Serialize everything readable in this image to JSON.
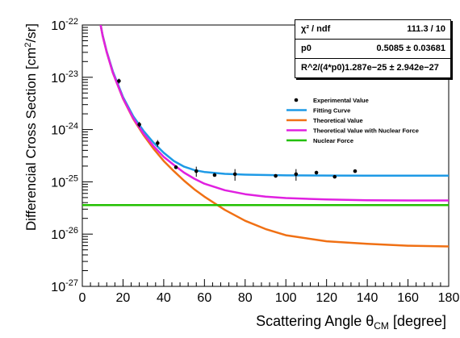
{
  "chart_data": {
    "type": "scatter",
    "xlabel": "Scattering Angle θ",
    "xlabel_sub": "CM",
    "xlabel_suffix": " [degree]",
    "ylabel": "Differencial Cross Section [cm",
    "ylabel_sup": "2",
    "ylabel_suffix": "/sr]",
    "xlim": [
      0,
      180
    ],
    "ylim": [
      1e-27,
      1e-22
    ],
    "yscale": "log",
    "x_ticks": [
      "0",
      "20",
      "40",
      "60",
      "80",
      "100",
      "120",
      "140",
      "160",
      "180"
    ],
    "y_ticks": [
      {
        "base": "10",
        "exp": "-22",
        "value": 1e-22
      },
      {
        "base": "10",
        "exp": "-23",
        "value": 1e-23
      },
      {
        "base": "10",
        "exp": "-24",
        "value": 1e-24
      },
      {
        "base": "10",
        "exp": "-25",
        "value": 1e-25
      },
      {
        "base": "10",
        "exp": "-26",
        "value": 1e-26
      },
      {
        "base": "10",
        "exp": "-27",
        "value": 1e-27
      }
    ],
    "grid": false,
    "legend_position": "center-right",
    "series": [
      {
        "name": "Experimental Value",
        "kind": "points",
        "color": "#000000",
        "points": [
          {
            "x": 18,
            "y": 8.5e-24,
            "err": 9e-25
          },
          {
            "x": 28,
            "y": 1.25e-24,
            "err": 1.5e-25
          },
          {
            "x": 37,
            "y": 5.5e-25,
            "err": 8e-26
          },
          {
            "x": 46,
            "y": 1.9e-25,
            "err": 1e-26
          },
          {
            "x": 56,
            "y": 1.6e-25,
            "err": 3.5e-26
          },
          {
            "x": 65,
            "y": 1.35e-25,
            "err": 8e-27
          },
          {
            "x": 75,
            "y": 1.4e-25,
            "err": 3.5e-26
          },
          {
            "x": 95,
            "y": 1.3e-25,
            "err": 8e-27
          },
          {
            "x": 105,
            "y": 1.4e-25,
            "err": 3.5e-26
          },
          {
            "x": 115,
            "y": 1.5e-25,
            "err": 1.2e-26
          },
          {
            "x": 124,
            "y": 1.25e-25,
            "err": 8e-27
          },
          {
            "x": 134,
            "y": 1.6e-25,
            "err": 1e-26
          }
        ]
      },
      {
        "name": "Fitting Curve",
        "kind": "line",
        "color": "#1e9ae6",
        "points": [
          [
            9,
            1e-22
          ],
          [
            10,
            6.4e-23
          ],
          [
            12,
            3.1e-23
          ],
          [
            15,
            1.3e-23
          ],
          [
            20,
            4.2e-24
          ],
          [
            25,
            1.8e-24
          ],
          [
            30,
            9.5e-25
          ],
          [
            35,
            5.6e-25
          ],
          [
            40,
            3.6e-25
          ],
          [
            45,
            2.5e-25
          ],
          [
            50,
            1.95e-25
          ],
          [
            55,
            1.68e-25
          ],
          [
            60,
            1.54e-25
          ],
          [
            70,
            1.42e-25
          ],
          [
            80,
            1.37e-25
          ],
          [
            100,
            1.33e-25
          ],
          [
            120,
            1.32e-25
          ],
          [
            140,
            1.31e-25
          ],
          [
            160,
            1.31e-25
          ],
          [
            180,
            1.31e-25
          ]
        ]
      },
      {
        "name": "Theoretical Value",
        "kind": "line",
        "color": "#f07014",
        "points": [
          [
            9,
            1e-22
          ],
          [
            10,
            6.2e-23
          ],
          [
            12,
            3e-23
          ],
          [
            15,
            1.22e-23
          ],
          [
            20,
            3.9e-24
          ],
          [
            25,
            1.6e-24
          ],
          [
            30,
            7.9e-25
          ],
          [
            35,
            4.3e-25
          ],
          [
            40,
            2.5e-25
          ],
          [
            45,
            1.6e-25
          ],
          [
            50,
            1.05e-25
          ],
          [
            55,
            7.2e-26
          ],
          [
            60,
            5.2e-26
          ],
          [
            70,
            2.9e-26
          ],
          [
            80,
            1.8e-26
          ],
          [
            90,
            1.25e-26
          ],
          [
            100,
            9.5e-27
          ],
          [
            120,
            7.3e-27
          ],
          [
            140,
            6.5e-27
          ],
          [
            160,
            6e-27
          ],
          [
            180,
            5.8e-27
          ]
        ]
      },
      {
        "name": "Theoretical Value with Nuclear Force",
        "kind": "line",
        "color": "#e020e0",
        "points": [
          [
            9,
            1e-22
          ],
          [
            10,
            6.2e-23
          ],
          [
            12,
            3e-23
          ],
          [
            15,
            1.23e-23
          ],
          [
            20,
            3.95e-24
          ],
          [
            25,
            1.65e-24
          ],
          [
            30,
            8.4e-25
          ],
          [
            35,
            4.8e-25
          ],
          [
            40,
            3e-25
          ],
          [
            45,
            2.1e-25
          ],
          [
            50,
            1.5e-25
          ],
          [
            55,
            1.15e-25
          ],
          [
            60,
            9.2e-26
          ],
          [
            70,
            6.9e-26
          ],
          [
            80,
            5.8e-26
          ],
          [
            90,
            5.2e-26
          ],
          [
            100,
            4.9e-26
          ],
          [
            120,
            4.6e-26
          ],
          [
            140,
            4.45e-26
          ],
          [
            160,
            4.4e-26
          ],
          [
            180,
            4.4e-26
          ]
        ]
      },
      {
        "name": "Nuclear Force",
        "kind": "line",
        "color": "#22c000",
        "points": [
          [
            0,
            3.6e-26
          ],
          [
            180,
            3.6e-26
          ]
        ]
      }
    ],
    "stats": [
      {
        "key": "χ² / ndf",
        "value": "111.3 / 10"
      },
      {
        "key": "p0",
        "value": "0.5085 ± 0.03681"
      },
      {
        "key": "",
        "value": "R^2/(4*p0)1.287e−25 ± 2.942e−27"
      }
    ]
  }
}
